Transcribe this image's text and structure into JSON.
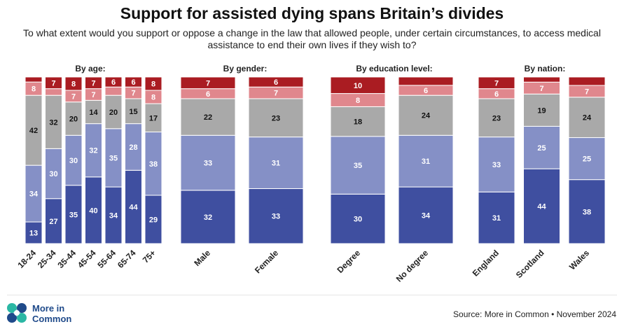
{
  "title": "Support for assisted dying spans Britain’s divides",
  "subtitle": "To what extent would you support or oppose a change in the law that allowed people, under certain circumstances, to access medical assistance to end their own lives if they wish to?",
  "source": "Source: More in Common • November 2024",
  "logo": {
    "line1": "More in",
    "line2": "Common"
  },
  "colors": {
    "strongly_support": "#3f4fa0",
    "somewhat_support": "#8590c6",
    "neither": "#a9a9a9",
    "somewhat_oppose": "#e0878d",
    "strongly_oppose": "#aa1c22",
    "logo_teal": "#2bb7a4",
    "logo_blue": "#1f4a8a"
  },
  "chart_data": {
    "type": "bar",
    "stacked": true,
    "normalized_to_100": true,
    "stack_order_bottom_to_top": [
      "strongly_support",
      "somewhat_support",
      "neither",
      "somewhat_oppose",
      "strongly_oppose"
    ],
    "groups": [
      {
        "title": "By age:",
        "categories": [
          "18-24",
          "25-34",
          "35-44",
          "45-54",
          "55-64",
          "65-74",
          "75+"
        ],
        "values": [
          [
            13,
            34,
            42,
            8,
            3
          ],
          [
            27,
            30,
            32,
            4,
            7
          ],
          [
            35,
            30,
            20,
            7,
            8
          ],
          [
            40,
            32,
            14,
            7,
            7
          ],
          [
            34,
            35,
            20,
            5,
            6
          ],
          [
            44,
            28,
            15,
            7,
            6
          ],
          [
            29,
            38,
            17,
            8,
            8
          ]
        ],
        "labels": [
          [
            "13",
            "34",
            "42",
            "8",
            ""
          ],
          [
            "27",
            "30",
            "32",
            "",
            "7"
          ],
          [
            "35",
            "30",
            "20",
            "7",
            "8"
          ],
          [
            "40",
            "32",
            "14",
            "7",
            "7"
          ],
          [
            "34",
            "35",
            "20",
            "",
            "6"
          ],
          [
            "44",
            "28",
            "15",
            "7",
            "6"
          ],
          [
            "29",
            "38",
            "17",
            "8",
            "8"
          ]
        ]
      },
      {
        "title": "By gender:",
        "categories": [
          "Male",
          "Female"
        ],
        "values": [
          [
            32,
            33,
            22,
            6,
            7
          ],
          [
            33,
            31,
            23,
            7,
            6
          ]
        ],
        "labels": [
          [
            "32",
            "33",
            "22",
            "6",
            "7"
          ],
          [
            "33",
            "31",
            "23",
            "7",
            "6"
          ]
        ]
      },
      {
        "title": "By education level:",
        "categories": [
          "Degree",
          "No degree"
        ],
        "values": [
          [
            30,
            35,
            18,
            8,
            10
          ],
          [
            34,
            31,
            24,
            6,
            5
          ]
        ],
        "labels": [
          [
            "30",
            "35",
            "18",
            "8",
            "10"
          ],
          [
            "34",
            "31",
            "24",
            "6",
            ""
          ]
        ]
      },
      {
        "title": "By nation:",
        "categories": [
          "England",
          "Scotland",
          "Wales"
        ],
        "values": [
          [
            31,
            33,
            23,
            6,
            7
          ],
          [
            44,
            25,
            19,
            7,
            3
          ],
          [
            38,
            25,
            24,
            7,
            5
          ]
        ],
        "labels": [
          [
            "31",
            "33",
            "23",
            "6",
            "7"
          ],
          [
            "44",
            "25",
            "19",
            "7",
            ""
          ],
          [
            "38",
            "25",
            "24",
            "7",
            ""
          ]
        ]
      }
    ]
  }
}
